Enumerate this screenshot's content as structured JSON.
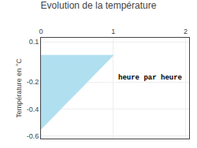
{
  "chart_data": {
    "type": "area",
    "title": "Evolution de la température",
    "ylabel": "Température en °C",
    "annotation": {
      "text": "heure par heure",
      "x": 1.05,
      "y": -0.17
    },
    "x": [
      0,
      0,
      1,
      0
    ],
    "values": [
      0,
      -0.55,
      0,
      0
    ],
    "color": "#b0dff0",
    "xlim": [
      0,
      2.05
    ],
    "ylim": [
      -0.62,
      0.13
    ],
    "xticks": [
      0,
      1,
      2
    ],
    "yticks": [
      0.1,
      -0.2,
      -0.4,
      -0.6
    ],
    "grid": true
  }
}
